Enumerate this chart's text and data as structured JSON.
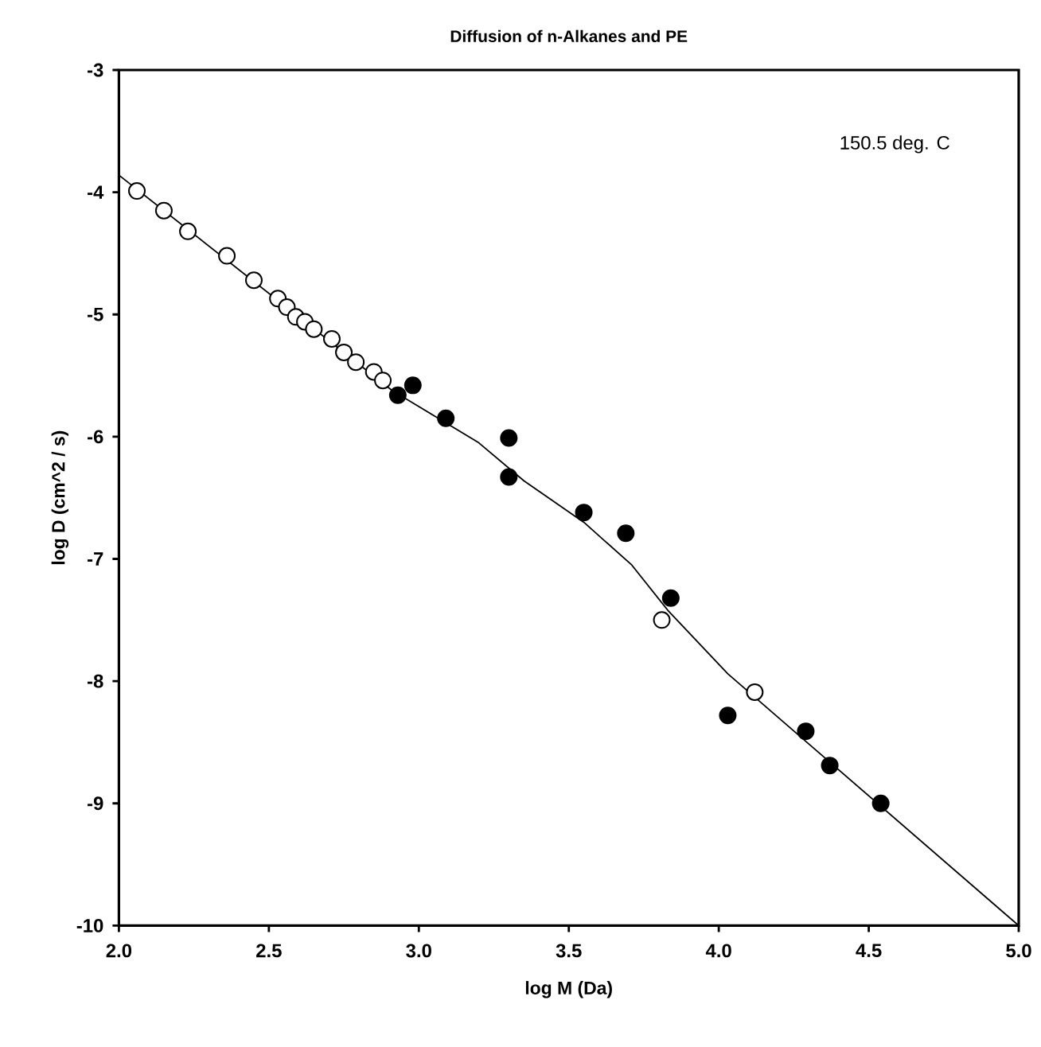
{
  "chart_data": {
    "type": "scatter",
    "title": "Diffusion of n-Alkanes and PE",
    "xlabel": "log M (Da)",
    "ylabel": "log D (cm^2 / s)",
    "annotations": [
      "150.5 deg. C"
    ],
    "xlim": [
      2.0,
      5.0
    ],
    "ylim": [
      -10,
      -3
    ],
    "xticks": [
      {
        "value": 2.0,
        "label": "2.0"
      },
      {
        "value": 2.5,
        "label": "2.5"
      },
      {
        "value": 3.0,
        "label": "3.0"
      },
      {
        "value": 3.5,
        "label": "3.5"
      },
      {
        "value": 4.0,
        "label": "4.0"
      },
      {
        "value": 4.5,
        "label": "4.5"
      },
      {
        "value": 5.0,
        "label": "5.0"
      }
    ],
    "yticks": [
      -10,
      -9,
      -8,
      -7,
      -6,
      -5,
      -4,
      -3
    ],
    "series": [
      {
        "type": "line",
        "color": "#000000",
        "marker": "none",
        "line_style": "solid",
        "x": [
          2.0,
          2.91,
          3.2,
          3.35,
          3.55,
          3.71,
          3.83,
          4.03,
          5.0
        ],
        "values": [
          -3.86,
          -5.62,
          -6.05,
          -6.36,
          -6.7,
          -7.05,
          -7.42,
          -7.94,
          -10
        ]
      },
      {
        "color": "#ffffff",
        "marker": "circle",
        "x": [
          2.06,
          2.15,
          2.23,
          2.36,
          2.45,
          2.53,
          2.56,
          2.59,
          2.62,
          2.65,
          2.71,
          2.75,
          2.79,
          2.85,
          2.88,
          3.81,
          4.12
        ],
        "values": [
          -3.99,
          -4.15,
          -4.32,
          -4.52,
          -4.72,
          -4.87,
          -4.94,
          -5.02,
          -5.06,
          -5.12,
          -5.2,
          -5.31,
          -5.39,
          -5.47,
          -5.54,
          -7.5,
          -8.09
        ]
      },
      {
        "color": "#000000",
        "marker": "circle",
        "x": [
          2.93,
          2.98,
          3.09,
          3.3,
          3.3,
          3.55,
          3.69,
          3.84,
          4.03,
          4.29,
          4.37,
          4.54
        ],
        "values": [
          -5.66,
          -5.58,
          -5.85,
          -6.01,
          -6.33,
          -6.62,
          -6.79,
          -7.32,
          -8.28,
          -8.41,
          -8.69,
          -9.0
        ]
      }
    ]
  }
}
